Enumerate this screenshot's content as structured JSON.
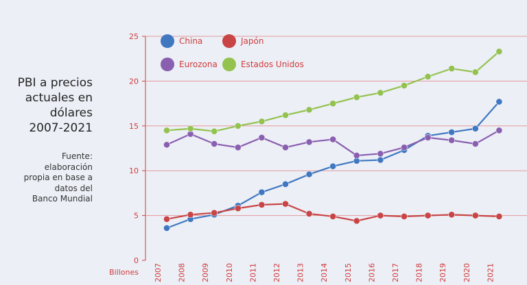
{
  "sidebar": {
    "title": "PBI a precios\nactuales en\ndólares\n2007-2021",
    "source": "Fuente:\nelaboración\npropia en base a\ndatos del\nBanco Mundial"
  },
  "chart_data": {
    "type": "line",
    "title": "PBI a precios actuales en dólares 2007-2021",
    "xlabel": "",
    "ylabel": "Billones",
    "ylim": [
      0,
      25
    ],
    "yticks": [
      "0",
      "5",
      "10",
      "15",
      "20",
      "25"
    ],
    "categories": [
      "2007",
      "2008",
      "2009",
      "2010",
      "2011",
      "2012",
      "2013",
      "2014",
      "2015",
      "2016",
      "2017",
      "2018",
      "2019",
      "2020",
      "2021"
    ],
    "grid": true,
    "legend_position": "top-left",
    "series": [
      {
        "name": "China",
        "color": "#3f78c1",
        "values": [
          3.6,
          4.6,
          5.1,
          6.1,
          7.6,
          8.5,
          9.6,
          10.5,
          11.1,
          11.2,
          12.3,
          13.9,
          14.3,
          14.7,
          17.7
        ]
      },
      {
        "name": "Japón",
        "color": "#c94444",
        "values": [
          4.6,
          5.1,
          5.3,
          5.8,
          6.2,
          6.3,
          5.2,
          4.9,
          4.4,
          5.0,
          4.9,
          5.0,
          5.1,
          5.0,
          4.9
        ]
      },
      {
        "name": "Eurozona",
        "color": "#8a5fb0",
        "values": [
          12.9,
          14.1,
          13.0,
          12.6,
          13.7,
          12.6,
          13.2,
          13.5,
          11.7,
          11.9,
          12.6,
          13.7,
          13.4,
          13.0,
          14.5
        ]
      },
      {
        "name": "Estados Unidos",
        "color": "#93c24e",
        "values": [
          14.5,
          14.7,
          14.4,
          15.0,
          15.5,
          16.2,
          16.8,
          17.5,
          18.2,
          18.7,
          19.5,
          20.5,
          21.4,
          21.0,
          23.3
        ]
      }
    ]
  }
}
